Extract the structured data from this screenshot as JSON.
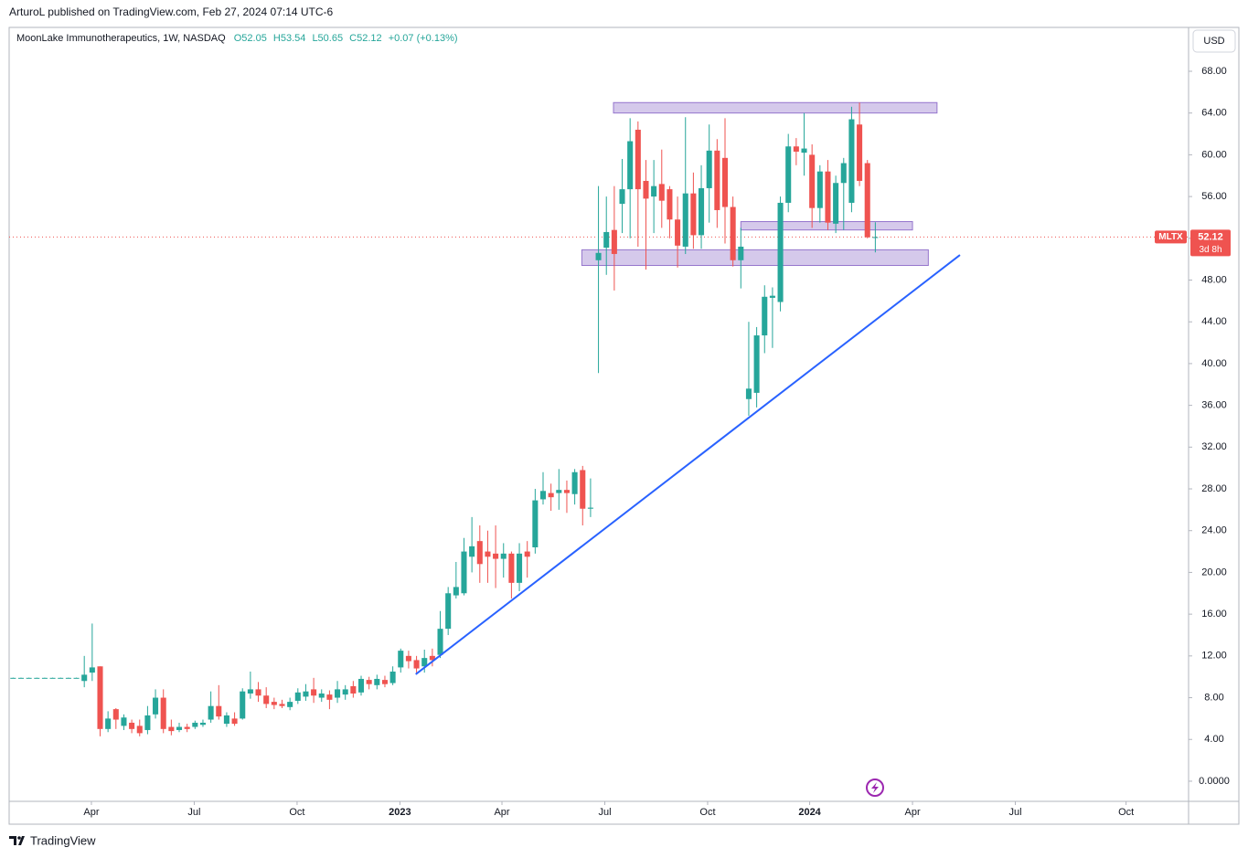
{
  "header": {
    "published": "ArturoL published on TradingView.com, Feb 27, 2024 07:14 UTC-6",
    "legend": "MoonLake Immunotherapeutics, 1W, NASDAQ",
    "open": "O52.05",
    "high": "H53.54",
    "low": "L50.65",
    "close": "C52.12",
    "change": "+0.07 (+0.13%)",
    "currency": "USD"
  },
  "footer": {
    "brand": "TradingView"
  },
  "chart_data": {
    "type": "candlestick",
    "symbol": "MLTX",
    "countdown": "3d 8h",
    "last_price": {
      "value": 52.12,
      "label": "52.12"
    },
    "up_color": "#26a69a",
    "down_color": "#ef5350",
    "x": [
      0,
      1,
      2,
      3,
      4,
      5,
      6,
      7,
      8,
      9,
      10,
      11,
      12,
      13,
      14,
      15,
      16,
      17,
      18,
      19,
      20,
      21,
      22,
      23,
      24,
      25,
      26,
      27,
      28,
      29,
      30,
      31,
      32,
      33,
      34,
      35,
      36,
      37,
      38,
      39,
      40,
      41,
      42,
      43,
      44,
      45,
      46,
      47,
      48,
      49,
      50,
      51,
      52,
      53,
      54,
      55,
      56,
      57,
      58,
      59,
      60,
      61,
      62,
      63,
      64,
      65,
      66,
      67,
      68,
      69,
      70,
      71,
      72,
      73,
      74,
      75,
      76,
      77,
      78,
      79,
      80,
      81,
      82,
      83,
      84,
      85,
      86,
      87,
      88,
      89,
      90,
      91,
      92,
      93,
      94,
      95,
      96,
      97,
      98,
      99,
      100,
      101,
      102,
      103,
      104,
      105,
      106,
      107,
      108,
      109
    ],
    "open": [
      9.88,
      9.88,
      9.88,
      9.88,
      9.88,
      9.88,
      9.88,
      9.88,
      9.88,
      9.6,
      10.4,
      11.0,
      5.0,
      6.9,
      5.3,
      5.6,
      5.3,
      4.9,
      6.4,
      8.0,
      5.2,
      4.9,
      5.2,
      5.2,
      5.4,
      5.9,
      7.2,
      5.5,
      6.0,
      6.0,
      8.4,
      8.8,
      8.2,
      7.6,
      7.4,
      7.1,
      7.7,
      8.1,
      8.8,
      8.0,
      8.3,
      8.0,
      8.3,
      9.1,
      8.5,
      9.7,
      9.2,
      9.7,
      9.4,
      10.9,
      12.0,
      11.6,
      11.0,
      12.0,
      12.1,
      14.6,
      17.8,
      18.0,
      21.5,
      23.0,
      22.0,
      21.8,
      21.3,
      21.8,
      19.0,
      22.0,
      22.4,
      27.0,
      27.6,
      27.6,
      27.9,
      27.5,
      29.8,
      26.1,
      49.9,
      51.1,
      52.8,
      55.3,
      56.7,
      62.4,
      57.5,
      56.0,
      57.2,
      56.7,
      53.8,
      51.2,
      56.3,
      52.3,
      56.8,
      60.4,
      59.7,
      55.0,
      49.9,
      36.6,
      37.2,
      42.7,
      46.3,
      45.9,
      55.4,
      60.8,
      60.2,
      60.0,
      54.9,
      58.4,
      53.4,
      57.3,
      55.4,
      62.9,
      59.2,
      52.05
    ],
    "high": [
      9.92,
      9.92,
      9.92,
      9.92,
      9.92,
      9.92,
      9.92,
      9.92,
      9.92,
      12.0,
      15.1,
      11.0,
      6.7,
      7.0,
      6.4,
      5.9,
      5.9,
      7.2,
      8.8,
      8.8,
      5.9,
      5.6,
      5.5,
      5.8,
      5.9,
      8.6,
      9.2,
      6.6,
      6.6,
      8.9,
      10.5,
      9.5,
      9.0,
      8.0,
      7.8,
      8.0,
      8.9,
      9.3,
      9.9,
      8.8,
      8.7,
      9.6,
      9.2,
      9.6,
      10.1,
      10.0,
      10.2,
      10.1,
      11.0,
      12.7,
      12.5,
      12.0,
      12.6,
      12.7,
      16.3,
      18.6,
      21.0,
      23.3,
      25.3,
      24.5,
      24.0,
      24.5,
      22.8,
      22.0,
      22.8,
      23.0,
      28.0,
      29.6,
      28.5,
      29.9,
      28.8,
      29.9,
      30.2,
      29.0,
      57.0,
      56.0,
      57.0,
      59.6,
      63.5,
      63.2,
      59.5,
      59.5,
      60.5,
      57.0,
      56.0,
      63.6,
      58.3,
      59.0,
      62.9,
      61.5,
      63.5,
      56.0,
      53.0,
      44.0,
      43.5,
      47.5,
      47.3,
      56.0,
      62.0,
      61.6,
      64.0,
      61.0,
      59.0,
      59.5,
      58.0,
      59.7,
      64.6,
      65.0,
      59.5,
      53.54
    ],
    "low": [
      9.85,
      9.85,
      9.85,
      9.85,
      9.85,
      9.85,
      9.85,
      9.85,
      9.85,
      9.0,
      9.6,
      4.3,
      4.7,
      5.0,
      4.9,
      4.6,
      4.3,
      4.5,
      6.0,
      4.6,
      4.4,
      4.7,
      4.7,
      5.0,
      5.2,
      5.6,
      5.9,
      5.2,
      5.3,
      5.9,
      7.9,
      7.6,
      7.0,
      6.9,
      7.0,
      6.8,
      7.4,
      7.7,
      7.5,
      7.6,
      6.9,
      7.5,
      7.8,
      8.0,
      8.2,
      8.8,
      8.8,
      9.0,
      9.2,
      10.4,
      10.8,
      10.3,
      10.4,
      11.0,
      11.8,
      14.0,
      17.5,
      17.8,
      20.0,
      19.0,
      19.0,
      18.5,
      19.5,
      17.5,
      18.2,
      19.5,
      21.8,
      26.5,
      25.9,
      26.0,
      25.7,
      26.5,
      24.5,
      25.3,
      39.1,
      48.5,
      47.0,
      52.5,
      52.0,
      51.2,
      49.0,
      52.5,
      53.0,
      52.0,
      49.2,
      50.5,
      51.0,
      51.0,
      53.5,
      53.0,
      51.5,
      49.3,
      47.2,
      35.0,
      35.8,
      41.0,
      41.5,
      45.0,
      54.5,
      59.0,
      58.0,
      53.0,
      53.5,
      52.8,
      52.5,
      52.8,
      54.5,
      57.0,
      52.0,
      50.65
    ],
    "close": [
      9.9,
      9.9,
      9.9,
      9.9,
      9.9,
      9.9,
      9.9,
      9.9,
      9.9,
      10.2,
      10.9,
      5.0,
      6.0,
      5.9,
      6.1,
      5.0,
      4.6,
      6.3,
      8.0,
      5.0,
      4.8,
      5.2,
      5.0,
      5.6,
      5.6,
      7.2,
      6.2,
      6.3,
      5.5,
      8.6,
      8.8,
      8.2,
      7.4,
      7.3,
      7.2,
      7.6,
      8.5,
      8.6,
      8.2,
      8.4,
      7.8,
      8.8,
      8.8,
      8.4,
      9.8,
      9.3,
      9.8,
      9.3,
      10.5,
      12.5,
      11.5,
      10.8,
      11.8,
      11.6,
      14.6,
      18.0,
      18.6,
      22.0,
      22.5,
      20.8,
      21.5,
      21.3,
      21.8,
      19.0,
      21.8,
      21.5,
      26.9,
      27.8,
      27.2,
      27.9,
      27.6,
      29.6,
      26.1,
      26.2,
      50.6,
      52.6,
      50.5,
      56.7,
      61.3,
      56.7,
      55.8,
      57.0,
      55.6,
      53.8,
      51.3,
      56.3,
      52.3,
      56.8,
      60.4,
      54.7,
      55.0,
      49.9,
      51.2,
      37.6,
      42.7,
      46.4,
      46.5,
      55.4,
      60.8,
      60.3,
      60.6,
      54.9,
      58.4,
      53.5,
      57.3,
      59.2,
      63.4,
      57.5,
      52.1,
      52.12
    ],
    "zones": [
      {
        "x": [
          75.9,
          116.8
        ],
        "y": [
          64.0,
          65.0
        ]
      },
      {
        "x": [
          92.0,
          113.7
        ],
        "y": [
          52.8,
          53.6
        ]
      },
      {
        "x": [
          71.9,
          115.7
        ],
        "y": [
          49.4,
          50.9
        ]
      }
    ],
    "trendline": {
      "x": [
        50.9,
        119.7
      ],
      "y": [
        10.24,
        50.4
      ],
      "color": "#2962ff"
    },
    "xlim": [
      -0.5,
      148.6
    ],
    "xticks": [
      {
        "value": 9.9,
        "label": "Apr"
      },
      {
        "value": 22.9,
        "label": "Jul"
      },
      {
        "value": 35.9,
        "label": "Oct"
      },
      {
        "value": 48.9,
        "label": "2023"
      },
      {
        "value": 61.8,
        "label": "Apr"
      },
      {
        "value": 74.8,
        "label": "Jul"
      },
      {
        "value": 87.8,
        "label": "Oct"
      },
      {
        "value": 100.7,
        "label": "2024"
      },
      {
        "value": 113.7,
        "label": "Apr"
      },
      {
        "value": 126.7,
        "label": "Jul"
      },
      {
        "value": 140.7,
        "label": "Oct"
      }
    ],
    "ylim": [
      -1.93,
      72.2
    ],
    "yticks": [
      {
        "value": 0,
        "label": "0.0000"
      },
      {
        "value": 4,
        "label": "4.00"
      },
      {
        "value": 8,
        "label": "8.00"
      },
      {
        "value": 12,
        "label": "12.00"
      },
      {
        "value": 16,
        "label": "16.00"
      },
      {
        "value": 20,
        "label": "20.00"
      },
      {
        "value": 24,
        "label": "24.00"
      },
      {
        "value": 28,
        "label": "28.00"
      },
      {
        "value": 32,
        "label": "32.00"
      },
      {
        "value": 36,
        "label": "36.00"
      },
      {
        "value": 40,
        "label": "40.00"
      },
      {
        "value": 44,
        "label": "44.00"
      },
      {
        "value": 48,
        "label": "48.00"
      },
      {
        "value": 52,
        "label": "52.00"
      },
      {
        "value": 56,
        "label": "56.00"
      },
      {
        "value": 60,
        "label": "60.00"
      },
      {
        "value": 64,
        "label": "64.00"
      },
      {
        "value": 68,
        "label": "68.00"
      }
    ]
  }
}
